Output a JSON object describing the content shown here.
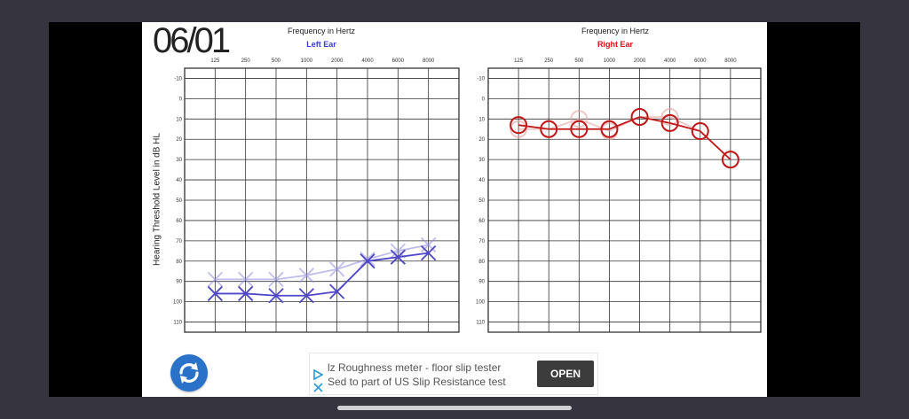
{
  "overlay": {
    "date": "06/01"
  },
  "chart_data": [
    {
      "type": "line",
      "title": "Frequency in Hertz",
      "subtitle": "Left Ear",
      "ylabel": "Hearing Threshold Level in dB HL",
      "x_ticks": [
        "125",
        "250",
        "500",
        "1000",
        "2000",
        "4000",
        "6000",
        "8000"
      ],
      "y_ticks": [
        "-10",
        "0",
        "10",
        "20",
        "30",
        "40",
        "50",
        "60",
        "70",
        "80",
        "90",
        "100",
        "110"
      ],
      "ylim": [
        -10,
        110
      ],
      "y_inverted": true,
      "grid": true,
      "marker": "x",
      "series": [
        {
          "values": [
            96,
            96,
            97,
            97,
            95,
            80,
            78,
            76
          ],
          "color": "#4f47c9",
          "opacity": 1
        },
        {
          "values": [
            89,
            89,
            89,
            87,
            84,
            79,
            75,
            72
          ],
          "color": "#8e8ae0",
          "opacity": 0.55
        }
      ]
    },
    {
      "type": "line",
      "title": "Frequency in Hertz",
      "subtitle": "Right Ear",
      "ylabel": "",
      "x_ticks": [
        "125",
        "250",
        "500",
        "1000",
        "2000",
        "4000",
        "6000",
        "8000"
      ],
      "y_ticks": [
        "-10",
        "0",
        "10",
        "20",
        "30",
        "40",
        "50",
        "60",
        "70",
        "80",
        "90",
        "100",
        "110"
      ],
      "ylim": [
        -10,
        110
      ],
      "y_inverted": true,
      "grid": true,
      "marker": "circle",
      "series": [
        {
          "values": [
            13,
            15,
            15,
            15,
            9,
            12,
            16,
            30
          ],
          "color": "#c01818",
          "opacity": 1
        },
        {
          "values": [
            15,
            15,
            10,
            16,
            9,
            9,
            16,
            30
          ],
          "color": "#e39a9a",
          "opacity": 0.55
        }
      ]
    }
  ],
  "ad": {
    "line1": "lz Roughness meter - floor slip tester",
    "line2": "Sed to part of US Slip Resistance test",
    "open_label": "OPEN"
  },
  "colors": {
    "left_ear": "#3b3bd6",
    "right_ear": "#e0101a",
    "grid": "#222222"
  },
  "icons": {
    "refresh": "refresh-icon",
    "ad_play": "ad-play-icon",
    "ad_close": "close-icon"
  }
}
